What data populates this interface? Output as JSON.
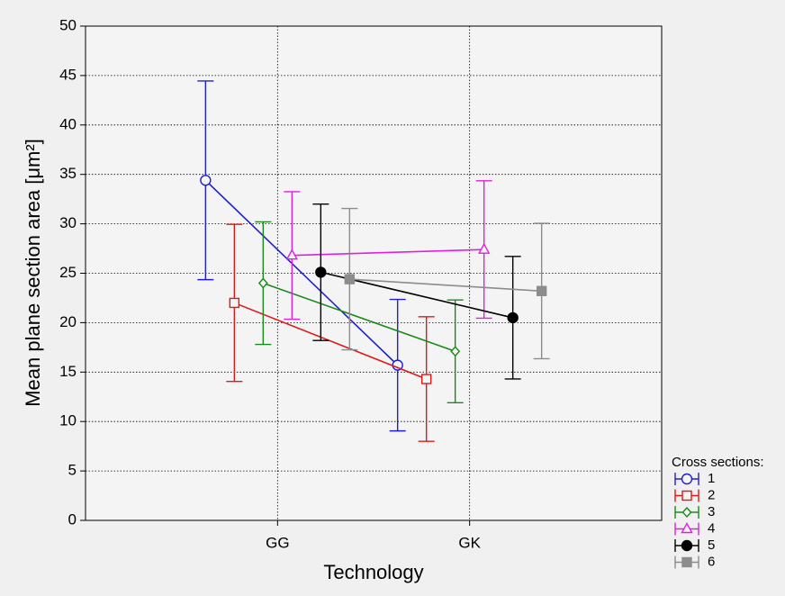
{
  "chart_data": {
    "type": "line",
    "x_label": "Technology",
    "y_label": "Mean plane section area [μm²]",
    "categories": [
      "GG",
      "GK"
    ],
    "ylim": [
      0,
      50
    ],
    "yticks": [
      0,
      5,
      10,
      15,
      20,
      25,
      30,
      35,
      40,
      45,
      50
    ],
    "grid": true,
    "legend_title": "Cross sections:",
    "series": [
      {
        "name": "1",
        "color": "#1f1fd0",
        "marker": "circle",
        "filled": false,
        "values": [
          34.4,
          15.7
        ],
        "errors": [
          10.05,
          6.65
        ]
      },
      {
        "name": "2",
        "color": "#e01818",
        "marker": "square",
        "filled": false,
        "values": [
          22.0,
          14.3
        ],
        "errors": [
          7.95,
          6.3
        ]
      },
      {
        "name": "3",
        "color": "#1a8a1a",
        "marker": "diamond",
        "filled": false,
        "values": [
          24.0,
          17.1
        ],
        "errors": [
          6.2,
          5.2
        ]
      },
      {
        "name": "4",
        "color": "#e020e0",
        "marker": "triangle",
        "filled": false,
        "values": [
          26.8,
          27.4
        ],
        "errors": [
          6.45,
          6.95
        ]
      },
      {
        "name": "5",
        "color": "#000000",
        "marker": "circle",
        "filled": true,
        "values": [
          25.1,
          20.5
        ],
        "errors": [
          6.9,
          6.2
        ]
      },
      {
        "name": "6",
        "color": "#8c8c8c",
        "marker": "square",
        "filled": true,
        "values": [
          24.4,
          23.2
        ],
        "errors": [
          7.15,
          6.85
        ]
      }
    ]
  }
}
